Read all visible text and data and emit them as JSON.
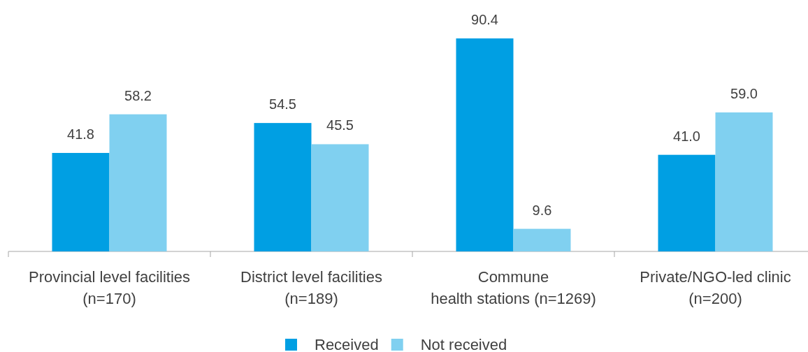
{
  "chart_data": {
    "type": "bar",
    "categories": [
      "Provincial level facilities\n(n=170)",
      "District level facilities\n(n=189)",
      "Commune\nhealth stations (n=1269)",
      "Private/NGO-led clinic\n(n=200)"
    ],
    "series": [
      {
        "name": "Received",
        "color": "#009fe3",
        "values": [
          41.8,
          54.5,
          90.4,
          41.0
        ],
        "value_labels": [
          "41.8",
          "54.5",
          "90.4",
          "41.0"
        ]
      },
      {
        "name": "Not received",
        "color": "#80d0f0",
        "values": [
          58.2,
          45.5,
          9.6,
          59.0
        ],
        "value_labels": [
          "58.2",
          "45.5",
          "9.6",
          "59.0"
        ]
      }
    ],
    "legend": "bottom"
  }
}
